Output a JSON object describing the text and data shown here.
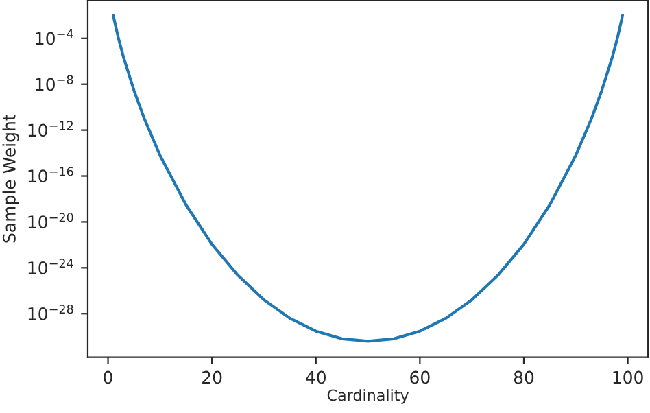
{
  "chart_data": {
    "type": "line",
    "xlabel": "Cardinality",
    "ylabel": "Sample Weight",
    "x": [
      1,
      2,
      3,
      5,
      7,
      10,
      15,
      20,
      25,
      30,
      35,
      40,
      45,
      50,
      55,
      60,
      65,
      70,
      75,
      80,
      85,
      90,
      93,
      95,
      97,
      98,
      99
    ],
    "series": [
      {
        "color": "#1f77b4",
        "values": [
          0.01,
          0.0001,
          2.1e-06,
          2.8e-09,
          9.5e-12,
          6.3e-15,
          3.1e-19,
          1.1e-22,
          2.2e-25,
          1.6e-27,
          4e-29,
          3e-30,
          6.5e-31,
          4e-31,
          6.5e-31,
          3e-30,
          4e-29,
          1.6e-27,
          2.2e-25,
          1.1e-22,
          3.1e-19,
          6.3e-15,
          9.5e-12,
          2.8e-09,
          2.1e-06,
          0.0001,
          0.01
        ]
      }
    ],
    "log": "y",
    "grid": false,
    "legend": false,
    "marker": "none",
    "line_style": "solid",
    "xlim": [
      -3.9,
      103.9
    ],
    "xticks": [
      0,
      20,
      40,
      60,
      80,
      100
    ],
    "ylim": [
      1.6e-32,
      0.2
    ],
    "yticks": [
      {
        "value": 1e-28,
        "label": "10$^{−28}$"
      },
      {
        "value": 1e-24,
        "label": "10$^{−24}$"
      },
      {
        "value": 1e-20,
        "label": "10$^{−20}$"
      },
      {
        "value": 1e-16,
        "label": "10$^{−16}$"
      },
      {
        "value": 1e-12,
        "label": "10$^{−12}$"
      },
      {
        "value": 1e-08,
        "label": "10$^{−8}$"
      },
      {
        "value": 0.0001,
        "label": "10$^{−4}$"
      }
    ]
  }
}
